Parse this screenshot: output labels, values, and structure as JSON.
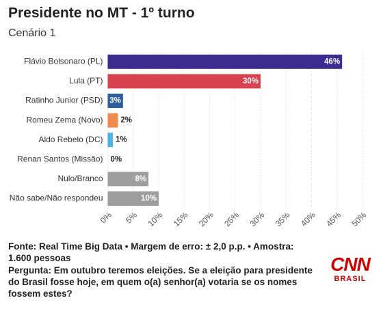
{
  "chart_data": {
    "type": "bar",
    "orientation": "horizontal",
    "title": "Presidente no MT - 1º turno",
    "subtitle": "Cenário 1",
    "categories": [
      "Flávio Bolsonaro (PL)",
      "Lula (PT)",
      "Ratinho Junior (PSD)",
      "Romeu Zema (Novo)",
      "Aldo Rebelo (DC)",
      "Renan Santos (Missão)",
      "Nulo/Branco",
      "Não sabe/Não respondeu"
    ],
    "values": [
      46,
      30,
      3,
      2,
      1,
      0,
      8,
      10
    ],
    "value_labels": [
      "46%",
      "30%",
      "3%",
      "2%",
      "1%",
      "0%",
      "8%",
      "10%"
    ],
    "colors": [
      "#3b2c8e",
      "#d8434f",
      "#2f5e9c",
      "#ef8a4c",
      "#4db2e6",
      "#9e9e9e",
      "#9e9e9e",
      "#9e9e9e"
    ],
    "xlim": [
      0,
      50
    ],
    "xticks": [
      {
        "value": 0,
        "label": "0%"
      },
      {
        "value": 5,
        "label": "5%"
      },
      {
        "value": 10,
        "label": "10%"
      },
      {
        "value": 15,
        "label": "15%"
      },
      {
        "value": 20,
        "label": "20%"
      },
      {
        "value": 25,
        "label": "25%"
      },
      {
        "value": 30,
        "label": "30%"
      },
      {
        "value": 35,
        "label": "35%"
      },
      {
        "value": 40,
        "label": "40%"
      },
      {
        "value": 45,
        "label": "45%"
      },
      {
        "value": 50,
        "label": "50%"
      }
    ],
    "grid": true
  },
  "source": "Fonte: Real Time Big Data • Margem de erro: ± 2,0 p.p. • Amostra: 1.600 pessoas",
  "question": "Pergunta: Em outubro teremos eleições. Se a eleição para presidente do Brasil fosse hoje, em quem o(a) senhor(a) votaria se os nomes fossem estes?",
  "logo": {
    "text": "CNN",
    "subtext": "BRASIL"
  }
}
